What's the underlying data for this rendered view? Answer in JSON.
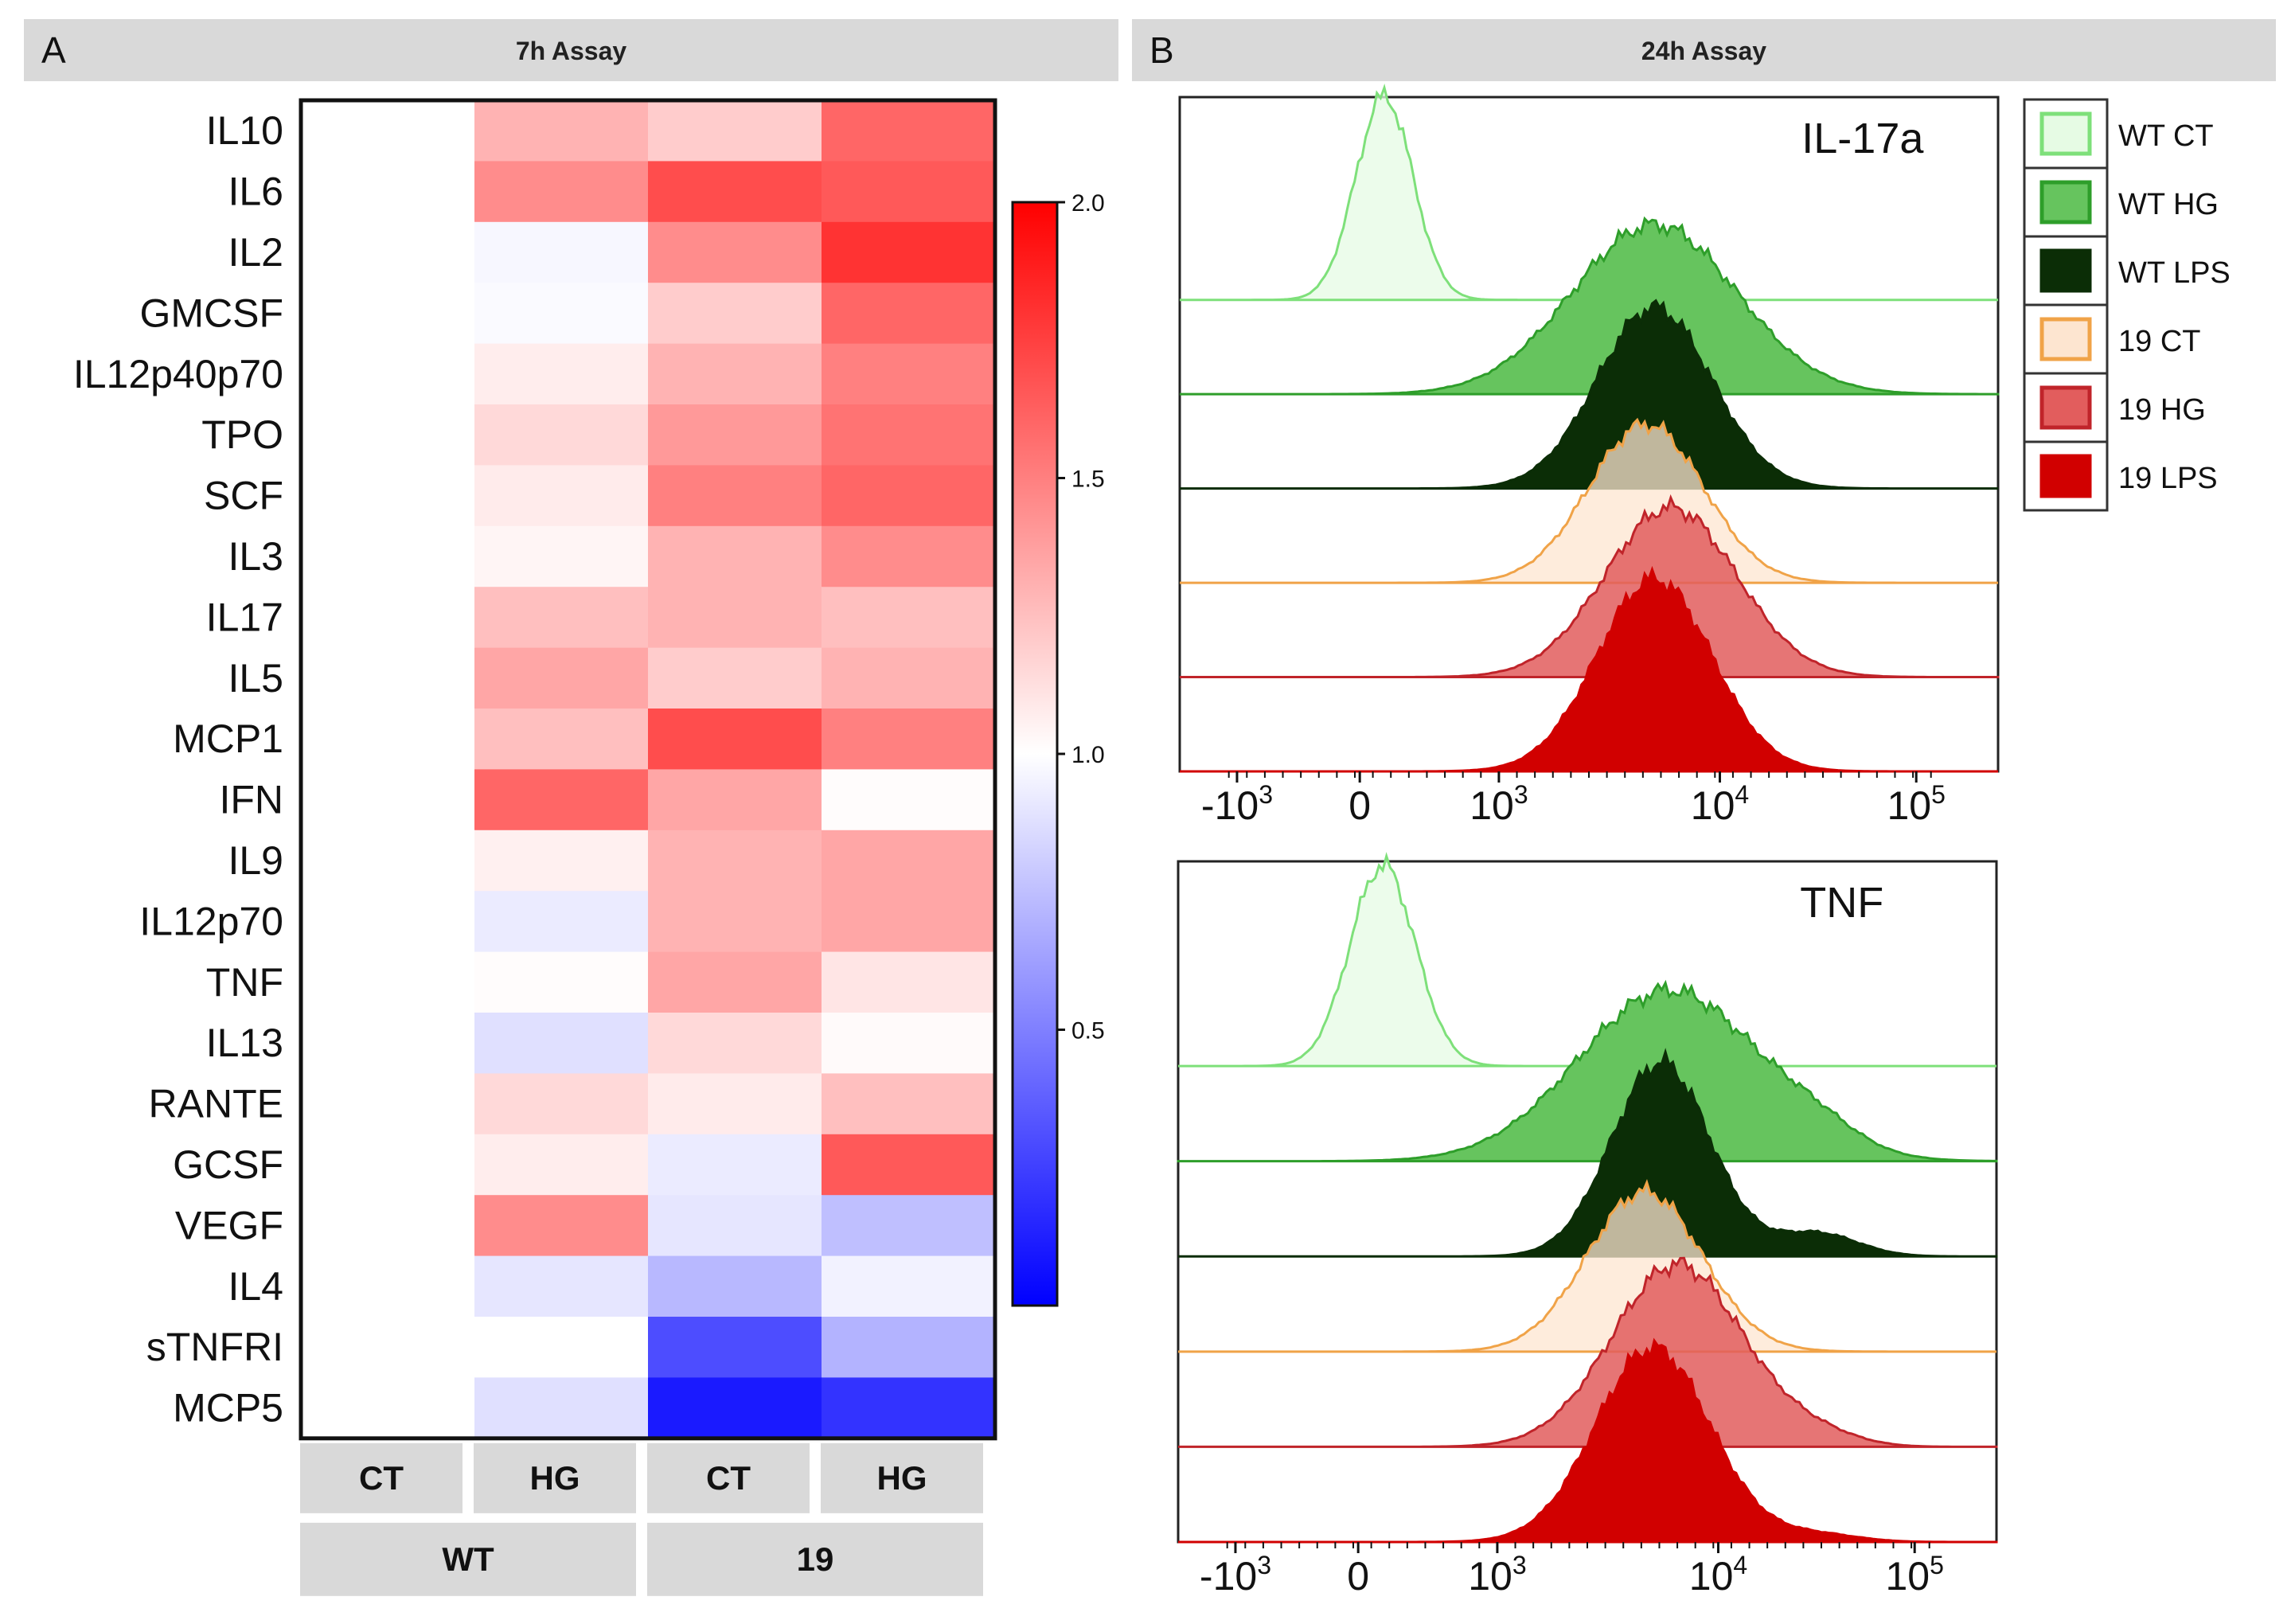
{
  "panels": {
    "a": {
      "letter": "A",
      "title": "7h Assay"
    },
    "b": {
      "letter": "B",
      "title": "24h Assay"
    }
  },
  "chart_data": [
    {
      "type": "heatmap",
      "title": "7h Assay",
      "rows": [
        "IL10",
        "IL6",
        "IL2",
        "GMCSF",
        "IL12p40p70",
        "TPO",
        "SCF",
        "IL3",
        "IL17",
        "IL5",
        "MCP1",
        "IFN",
        "IL9",
        "IL12p70",
        "TNF",
        "IL13",
        "RANTE",
        "GCSF",
        "VEGF",
        "IL4",
        "sTNFRI",
        "MCP5"
      ],
      "columns": [
        "CT",
        "HG",
        "CT",
        "HG"
      ],
      "column_groups": [
        {
          "label": "WT",
          "span": 2
        },
        {
          "label": "19",
          "span": 2
        }
      ],
      "values": [
        [
          1.0,
          1.3,
          1.2,
          1.6
        ],
        [
          1.0,
          1.45,
          1.7,
          1.65
        ],
        [
          1.0,
          0.97,
          1.45,
          1.8
        ],
        [
          1.0,
          0.98,
          1.2,
          1.6
        ],
        [
          1.0,
          1.07,
          1.3,
          1.5
        ],
        [
          1.0,
          1.15,
          1.4,
          1.55
        ],
        [
          1.0,
          1.08,
          1.5,
          1.6
        ],
        [
          1.0,
          1.04,
          1.3,
          1.45
        ],
        [
          1.0,
          1.25,
          1.3,
          1.25
        ],
        [
          1.0,
          1.35,
          1.2,
          1.3
        ],
        [
          1.0,
          1.25,
          1.7,
          1.5
        ],
        [
          1.0,
          1.6,
          1.35,
          1.01
        ],
        [
          1.0,
          1.06,
          1.3,
          1.35
        ],
        [
          1.0,
          0.92,
          1.3,
          1.35
        ],
        [
          1.0,
          1.01,
          1.35,
          1.1
        ],
        [
          1.0,
          0.88,
          1.15,
          1.02
        ],
        [
          1.0,
          1.15,
          1.08,
          1.25
        ],
        [
          1.0,
          1.07,
          0.92,
          1.65
        ],
        [
          1.0,
          1.45,
          0.9,
          0.75
        ],
        [
          1.0,
          0.9,
          0.72,
          0.95
        ],
        [
          1.0,
          1.0,
          0.3,
          0.7
        ],
        [
          1.0,
          0.88,
          0.1,
          0.2
        ]
      ],
      "colorbar": {
        "min": 0,
        "max": 2.0,
        "ticks": [
          "2.0",
          "1.5",
          "1.0",
          "0.5"
        ],
        "low_color": "#0000ff",
        "mid_color": "#ffffff",
        "high_color": "#ff0000"
      }
    },
    {
      "type": "area",
      "title": "IL-17a",
      "series": [
        "WT CT",
        "WT HG",
        "WT LPS",
        "19 CT",
        "19 HG",
        "19 LPS"
      ],
      "x_ticks": [
        "-10",
        "0",
        "10",
        "10",
        "10"
      ],
      "x_tick_exponents": [
        "3",
        "",
        "3",
        "4",
        "5"
      ],
      "histograms": [
        {
          "name": "WT CT",
          "center": 0.25,
          "width": 0.035,
          "height": 0.9,
          "tail": 0.0
        },
        {
          "name": "WT HG",
          "center": 0.58,
          "width": 0.1,
          "height": 0.75,
          "tail": 0.0
        },
        {
          "name": "WT LPS",
          "center": 0.58,
          "width": 0.07,
          "height": 0.8,
          "tail": 0.0
        },
        {
          "name": "19 CT",
          "center": 0.57,
          "width": 0.07,
          "height": 0.7,
          "tail": 0.0
        },
        {
          "name": "19 HG",
          "center": 0.6,
          "width": 0.08,
          "height": 0.75,
          "tail": 0.0
        },
        {
          "name": "19 LPS",
          "center": 0.58,
          "width": 0.07,
          "height": 0.85,
          "tail": 0.0
        }
      ]
    },
    {
      "type": "area",
      "title": "TNF",
      "series": [
        "WT CT",
        "WT HG",
        "WT LPS",
        "19 CT",
        "19 HG",
        "19 LPS"
      ],
      "x_ticks": [
        "-10",
        "0",
        "10",
        "10",
        "10"
      ],
      "x_tick_exponents": [
        "3",
        "",
        "3",
        "4",
        "5"
      ],
      "histograms": [
        {
          "name": "WT CT",
          "center": 0.25,
          "width": 0.04,
          "height": 0.88,
          "tail": 0.0
        },
        {
          "name": "WT HG",
          "center": 0.6,
          "width": 0.11,
          "height": 0.75,
          "tail": 0.1
        },
        {
          "name": "WT LPS",
          "center": 0.59,
          "width": 0.06,
          "height": 0.85,
          "tail": 0.12
        },
        {
          "name": "19 CT",
          "center": 0.57,
          "width": 0.07,
          "height": 0.7,
          "tail": 0.0
        },
        {
          "name": "19 HG",
          "center": 0.61,
          "width": 0.08,
          "height": 0.8,
          "tail": 0.06
        },
        {
          "name": "19 LPS",
          "center": 0.58,
          "width": 0.07,
          "height": 0.85,
          "tail": 0.04
        }
      ]
    }
  ],
  "legend": {
    "items": [
      {
        "label": "WT CT",
        "fill": "#e6fbe4",
        "stroke": "#7ee07a"
      },
      {
        "label": "WT HG",
        "fill": "#66c45e",
        "stroke": "#2e9e2a"
      },
      {
        "label": "WT LPS",
        "fill": "#0b2d06",
        "stroke": "#0b2d06"
      },
      {
        "label": "19 CT",
        "fill": "#fde5d0",
        "stroke": "#f0a348"
      },
      {
        "label": "19 HG",
        "fill": "#e25d5d",
        "stroke": "#c0242a"
      },
      {
        "label": "19 LPS",
        "fill": "#d10000",
        "stroke": "#d10000"
      }
    ]
  }
}
